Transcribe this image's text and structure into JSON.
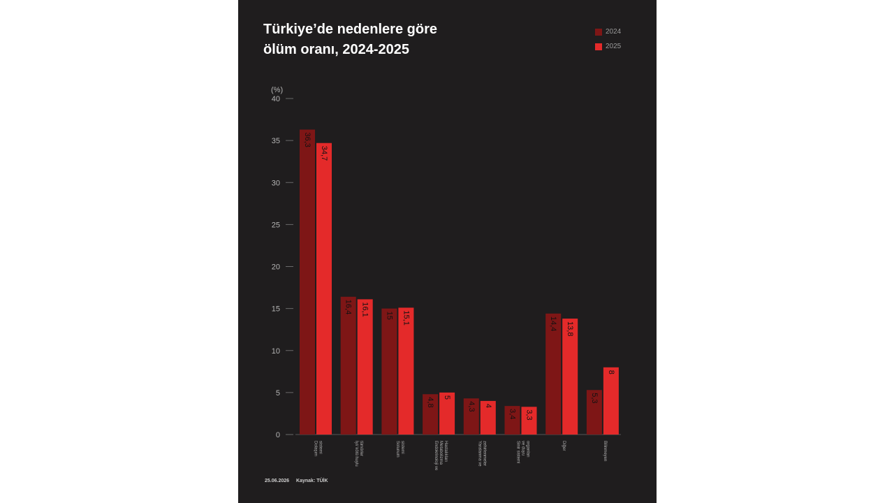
{
  "chart_data": {
    "type": "bar",
    "title_lines": [
      "Türkiye’de nedenlere göre",
      "ölüm oranı, 2024-2025"
    ],
    "unit_label": "(%)",
    "ylim": [
      0,
      40
    ],
    "yticks": [
      "40",
      "35",
      "30",
      "25",
      "20",
      "15",
      "10",
      "5",
      "0"
    ],
    "categories": [
      [
        "Dolaşım",
        "sistemi"
      ],
      [
        "İyi/ kötü huylu",
        "tümörler"
      ],
      [
        "Solunum",
        "sistemi"
      ],
      [
        "Endokrinoloji ve",
        "Metabolizma",
        "Hastalıkları"
      ],
      [
        "Yaralanma ve",
        "zehirlenmeler"
      ],
      [
        "Sinir sistemi",
        "ve duyu",
        "organları"
      ],
      [
        "Diğer"
      ],
      [
        "Bilinmeyen"
      ]
    ],
    "series": [
      {
        "name": "2024",
        "color": "#7e1616",
        "values": [
          36.3,
          16.4,
          15,
          4.8,
          4.3,
          3.4,
          14.4,
          5.3
        ],
        "labels": [
          "36,3",
          "16,4",
          "15",
          "4,8",
          "4,3",
          "3,4",
          "14,4",
          "5,3"
        ]
      },
      {
        "name": "2025",
        "color": "#e42a2a",
        "values": [
          34.7,
          16.1,
          15.1,
          5,
          4,
          3.3,
          13.8,
          8
        ],
        "labels": [
          "34,7",
          "16,1",
          "15,1",
          "5",
          "4",
          "3,3",
          "13,8",
          "8"
        ]
      }
    ],
    "legend_position": "top-right",
    "grid": false
  },
  "footer": {
    "date": "25.06.2026",
    "source": "Kaynak: TÜİK"
  }
}
